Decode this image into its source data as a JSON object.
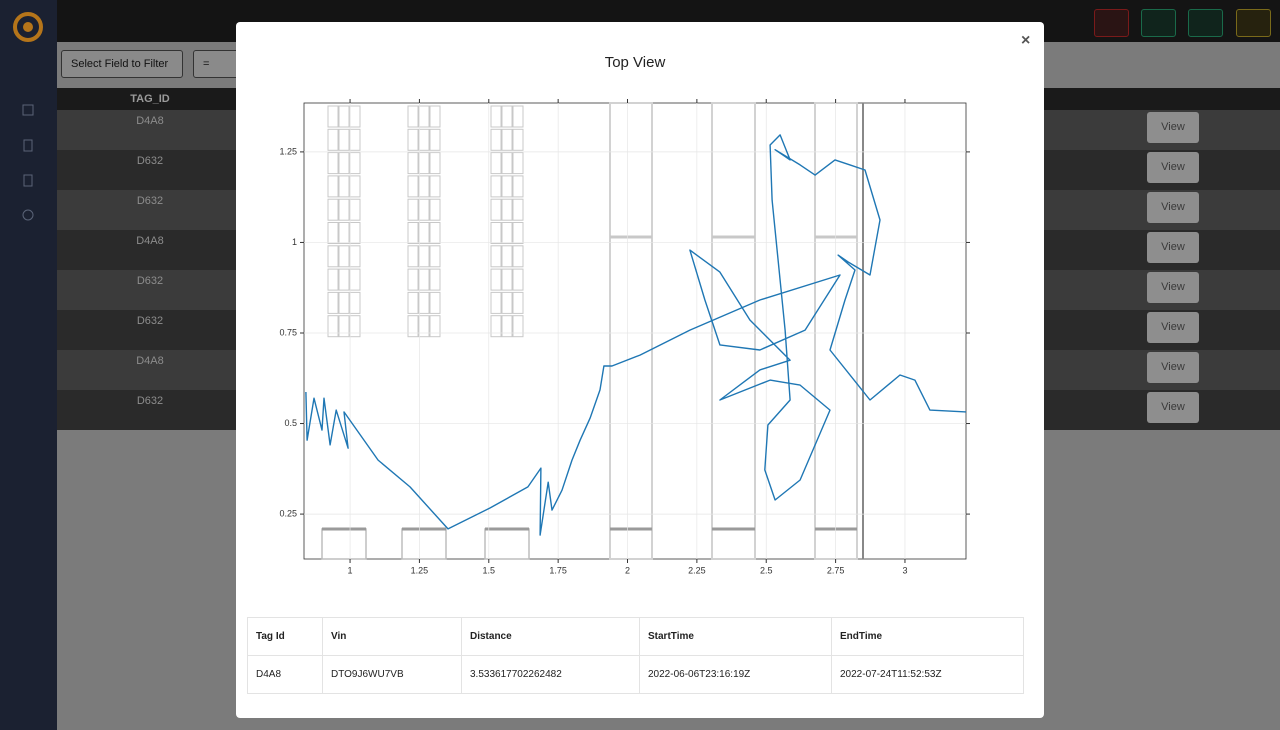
{
  "filter": {
    "field": "Select Field to Filter",
    "operator": "="
  },
  "background_table": {
    "header": "TAG_ID",
    "rows": [
      {
        "tag_id": "D4A8",
        "action": "View"
      },
      {
        "tag_id": "D632",
        "action": "View"
      },
      {
        "tag_id": "D632",
        "action": "View"
      },
      {
        "tag_id": "D4A8",
        "action": "View"
      },
      {
        "tag_id": "D632",
        "action": "View"
      },
      {
        "tag_id": "D632",
        "action": "View"
      },
      {
        "tag_id": "D4A8",
        "action": "View"
      },
      {
        "tag_id": "D632",
        "action": "View"
      }
    ]
  },
  "modal": {
    "close": "×",
    "table": {
      "header": [
        "Tag Id",
        "Vin",
        "Distance",
        "StartTime",
        "EndTime"
      ],
      "rows": [
        [
          "D4A8",
          "DTO9J6WU7VB",
          "3.533617702262482",
          "2022-06-06T23:16:19Z",
          "2022-07-24T11:52:53Z"
        ]
      ]
    }
  },
  "chart_data": {
    "type": "line",
    "title": "Top View",
    "x": [
      0.841,
      0.845,
      0.87,
      0.899,
      0.906,
      0.928,
      0.95,
      0.993,
      0.978,
      1.101,
      1.216,
      1.353,
      1.505,
      1.641,
      1.688,
      1.685,
      1.714,
      1.728,
      1.764,
      1.8,
      1.829,
      1.865,
      1.901,
      1.915,
      1.944,
      2.045,
      2.225,
      2.477,
      2.766,
      2.64,
      2.477,
      2.333,
      2.279,
      2.225,
      2.333,
      2.441,
      2.586,
      2.477,
      2.333,
      2.514,
      2.622,
      2.73,
      2.622,
      2.532,
      2.495,
      2.506,
      2.586,
      2.568,
      2.521,
      2.514,
      2.55,
      2.586,
      2.532,
      2.622,
      2.676,
      2.748,
      2.802,
      2.856,
      2.91,
      2.874,
      2.795,
      2.759,
      2.82,
      2.784,
      2.73,
      2.874,
      2.982,
      3.036,
      3.09,
      3.22
    ],
    "series": [
      {
        "color": "#1f77b4",
        "values": [
          0.587,
          0.454,
          0.57,
          0.482,
          0.57,
          0.441,
          0.537,
          0.432,
          0.532,
          0.399,
          0.325,
          0.209,
          0.267,
          0.325,
          0.377,
          0.192,
          0.338,
          0.261,
          0.316,
          0.399,
          0.454,
          0.515,
          0.593,
          0.659,
          0.659,
          0.689,
          0.758,
          0.841,
          0.91,
          0.758,
          0.703,
          0.717,
          0.841,
          0.979,
          0.918,
          0.786,
          0.675,
          0.648,
          0.565,
          0.62,
          0.606,
          0.537,
          0.344,
          0.289,
          0.372,
          0.496,
          0.565,
          0.758,
          1.117,
          1.269,
          1.297,
          1.228,
          1.256,
          1.214,
          1.186,
          1.228,
          1.214,
          1.2,
          1.062,
          0.91,
          0.946,
          0.965,
          0.924,
          0.841,
          0.703,
          0.565,
          0.634,
          0.62,
          0.537,
          0.532
        ]
      }
    ],
    "xlim": [
      0.834,
      3.22
    ],
    "ylim": [
      0.126,
      1.385
    ],
    "xticks": [
      1,
      1.25,
      1.5,
      1.75,
      2,
      2.25,
      2.5,
      2.75,
      3
    ],
    "yticks": [
      0.25,
      0.5,
      0.75,
      1,
      1.25
    ],
    "grid": true
  }
}
